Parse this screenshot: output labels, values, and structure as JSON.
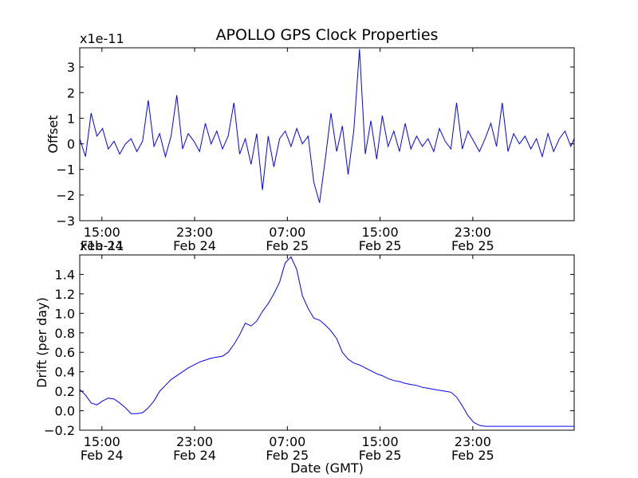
{
  "chart_data": [
    {
      "type": "line",
      "title": "APOLLO GPS Clock Properties",
      "ylabel": "Offset",
      "xlabel": "",
      "yscale_label": "x1e-11",
      "ylim": [
        -3,
        3.75
      ],
      "yticks": [
        -3,
        -2,
        -1,
        0,
        1,
        2,
        3
      ],
      "ytick_labels": [
        "−3",
        "−2",
        "−1",
        "0",
        "1",
        "2",
        "3"
      ],
      "xlim_hours": [
        0,
        43.3
      ],
      "xticks_hours": [
        1.94,
        10.06,
        18.18,
        26.3,
        34.42
      ],
      "xtick_labels": [
        [
          "15:00",
          "Feb 24"
        ],
        [
          "23:00",
          "Feb 24"
        ],
        [
          "07:00",
          "Feb 25"
        ],
        [
          "15:00",
          "Feb 25"
        ],
        [
          "23:00",
          "Feb 25"
        ]
      ],
      "color": "#0000ff",
      "series": [
        {
          "name": "Offset",
          "x_hours": [
            0,
            0.5,
            1,
            1.5,
            2,
            2.5,
            3,
            3.5,
            4,
            4.5,
            5,
            5.5,
            6,
            6.5,
            7,
            7.5,
            8,
            8.5,
            9,
            9.5,
            10,
            10.5,
            11,
            11.5,
            12,
            12.5,
            13,
            13.5,
            14,
            14.5,
            15,
            15.5,
            16,
            16.5,
            17,
            17.5,
            18,
            18.5,
            19,
            19.5,
            20,
            20.5,
            21,
            21.5,
            22,
            22.5,
            23,
            23.5,
            24,
            24.5,
            25,
            25.5,
            26,
            26.5,
            27,
            27.5,
            28,
            28.5,
            29,
            29.5,
            30,
            30.5,
            31,
            31.5,
            32,
            32.5,
            33,
            33.5,
            34,
            34.5,
            35,
            35.5,
            36,
            36.5,
            37,
            37.5,
            38,
            38.5,
            39,
            39.5,
            40,
            40.5,
            41,
            41.5,
            42,
            42.5,
            43,
            43.3
          ],
          "values": [
            0.2,
            -0.5,
            1.2,
            0.3,
            0.6,
            -0.2,
            0.1,
            -0.4,
            0.0,
            0.2,
            -0.3,
            0.1,
            1.7,
            -0.1,
            0.4,
            -0.5,
            0.3,
            1.9,
            -0.2,
            0.4,
            0.1,
            -0.3,
            0.8,
            0.0,
            0.5,
            -0.2,
            0.3,
            1.6,
            -0.4,
            0.2,
            -0.8,
            0.4,
            -1.8,
            0.3,
            -0.9,
            0.2,
            0.5,
            -0.1,
            0.6,
            0.0,
            0.3,
            -1.5,
            -2.3,
            -0.6,
            1.2,
            -0.3,
            0.7,
            -1.2,
            0.5,
            3.7,
            -0.4,
            0.9,
            -0.6,
            1.1,
            -0.1,
            0.5,
            -0.3,
            0.8,
            -0.2,
            0.3,
            -0.1,
            0.2,
            -0.3,
            0.6,
            0.1,
            -0.2,
            1.6,
            -0.2,
            0.5,
            0.1,
            -0.3,
            0.2,
            0.8,
            -0.1,
            1.6,
            -0.3,
            0.4,
            0.0,
            0.3,
            -0.2,
            0.2,
            -0.5,
            0.4,
            -0.3,
            0.2,
            0.5,
            -0.1,
            0.2
          ]
        }
      ]
    },
    {
      "type": "line",
      "title": "",
      "ylabel": "Drift (per day)",
      "xlabel": "Date (GMT)",
      "yscale_label": "x1e-11",
      "ylim": [
        -0.2,
        1.6
      ],
      "yticks": [
        -0.2,
        0.0,
        0.2,
        0.4,
        0.6,
        0.8,
        1.0,
        1.2,
        1.4
      ],
      "ytick_labels": [
        "−0.2",
        "0.0",
        "0.2",
        "0.4",
        "0.6",
        "0.8",
        "1.0",
        "1.2",
        "1.4"
      ],
      "xlim_hours": [
        0,
        43.3
      ],
      "xticks_hours": [
        1.94,
        10.06,
        18.18,
        26.3,
        34.42
      ],
      "xtick_labels": [
        [
          "15:00",
          "Feb 24"
        ],
        [
          "23:00",
          "Feb 24"
        ],
        [
          "07:00",
          "Feb 25"
        ],
        [
          "15:00",
          "Feb 25"
        ],
        [
          "23:00",
          "Feb 25"
        ]
      ],
      "color": "#0000ff",
      "series": [
        {
          "name": "Drift",
          "x_hours": [
            0,
            0.5,
            1,
            1.5,
            2,
            2.5,
            3,
            3.5,
            4,
            4.5,
            5,
            5.5,
            6,
            6.5,
            7,
            7.5,
            8,
            8.5,
            9,
            9.5,
            10,
            10.5,
            11,
            11.5,
            12,
            12.5,
            13,
            13.5,
            14,
            14.5,
            15,
            15.5,
            16,
            16.5,
            17,
            17.5,
            18,
            18.5,
            19,
            19.5,
            20,
            20.5,
            21,
            21.5,
            22,
            22.5,
            23,
            23.5,
            24,
            24.5,
            25,
            25.5,
            26,
            26.5,
            27,
            27.5,
            28,
            28.5,
            29,
            29.5,
            30,
            30.5,
            31,
            31.5,
            32,
            32.5,
            33,
            33.5,
            34,
            34.5,
            35,
            35.5,
            36,
            36.5,
            37,
            37.5,
            38,
            38.5,
            39,
            39.5,
            40,
            40.5,
            41,
            41.5,
            42,
            42.5,
            43,
            43.3
          ],
          "values": [
            0.22,
            0.16,
            0.08,
            0.06,
            0.1,
            0.13,
            0.12,
            0.08,
            0.03,
            -0.03,
            -0.03,
            -0.02,
            0.03,
            0.1,
            0.2,
            0.26,
            0.32,
            0.36,
            0.4,
            0.44,
            0.47,
            0.5,
            0.52,
            0.54,
            0.55,
            0.56,
            0.6,
            0.68,
            0.78,
            0.9,
            0.87,
            0.92,
            1.02,
            1.1,
            1.2,
            1.32,
            1.52,
            1.58,
            1.45,
            1.18,
            1.05,
            0.95,
            0.93,
            0.88,
            0.82,
            0.74,
            0.6,
            0.53,
            0.49,
            0.47,
            0.44,
            0.41,
            0.38,
            0.36,
            0.33,
            0.31,
            0.3,
            0.28,
            0.27,
            0.26,
            0.24,
            0.23,
            0.22,
            0.21,
            0.2,
            0.19,
            0.14,
            0.05,
            -0.05,
            -0.12,
            -0.15,
            -0.16,
            -0.16,
            -0.16,
            -0.16,
            -0.16,
            -0.16,
            -0.16,
            -0.16,
            -0.16,
            -0.16,
            -0.16,
            -0.16,
            -0.16,
            -0.16,
            -0.16,
            -0.16,
            -0.16
          ]
        }
      ]
    }
  ]
}
